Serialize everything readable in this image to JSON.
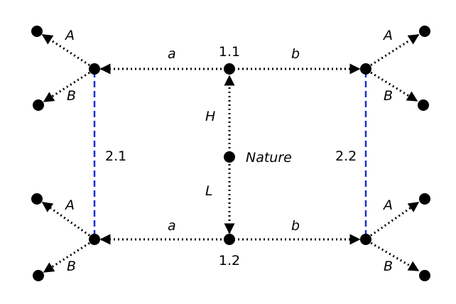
{
  "nodes": {
    "n11": "1.1",
    "n12": "1.2",
    "n21": "2.1",
    "n22": "2.2",
    "nature": "Nature"
  },
  "edge_labels": {
    "a": "a",
    "b": "b",
    "H": "H",
    "L": "L",
    "A": "A",
    "B": "B"
  },
  "colors": {
    "edges": "#000000",
    "information_set": "#1a2fd0"
  }
}
